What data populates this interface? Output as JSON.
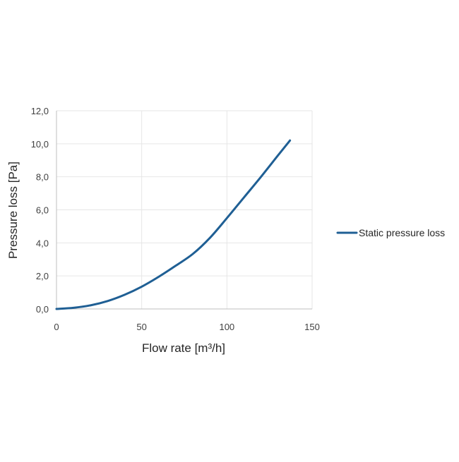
{
  "chart_data": {
    "type": "line",
    "title": "",
    "xlabel": "Flow rate [m³/h]",
    "ylabel": "Pressure loss [Pa]",
    "xlim": [
      0,
      150
    ],
    "ylim": [
      0,
      12
    ],
    "x_ticks": [
      0,
      50,
      100,
      150
    ],
    "x_tick_labels": [
      "0",
      "50",
      "100",
      "150"
    ],
    "y_ticks": [
      0,
      2,
      4,
      6,
      8,
      10,
      12
    ],
    "y_tick_labels": [
      "0,0",
      "2,0",
      "4,0",
      "6,0",
      "8,0",
      "10,0",
      "12,0"
    ],
    "grid": true,
    "legend_position": "right",
    "series": [
      {
        "name": "Static pressure loss",
        "color": "#1f5f94",
        "x": [
          0,
          10,
          20,
          30,
          40,
          50,
          60,
          70,
          80,
          90,
          100,
          110,
          120,
          130,
          137
        ],
        "y": [
          0.0,
          0.07,
          0.22,
          0.48,
          0.86,
          1.35,
          1.95,
          2.62,
          3.33,
          4.3,
          5.5,
          6.75,
          8.0,
          9.3,
          10.2
        ]
      }
    ]
  }
}
